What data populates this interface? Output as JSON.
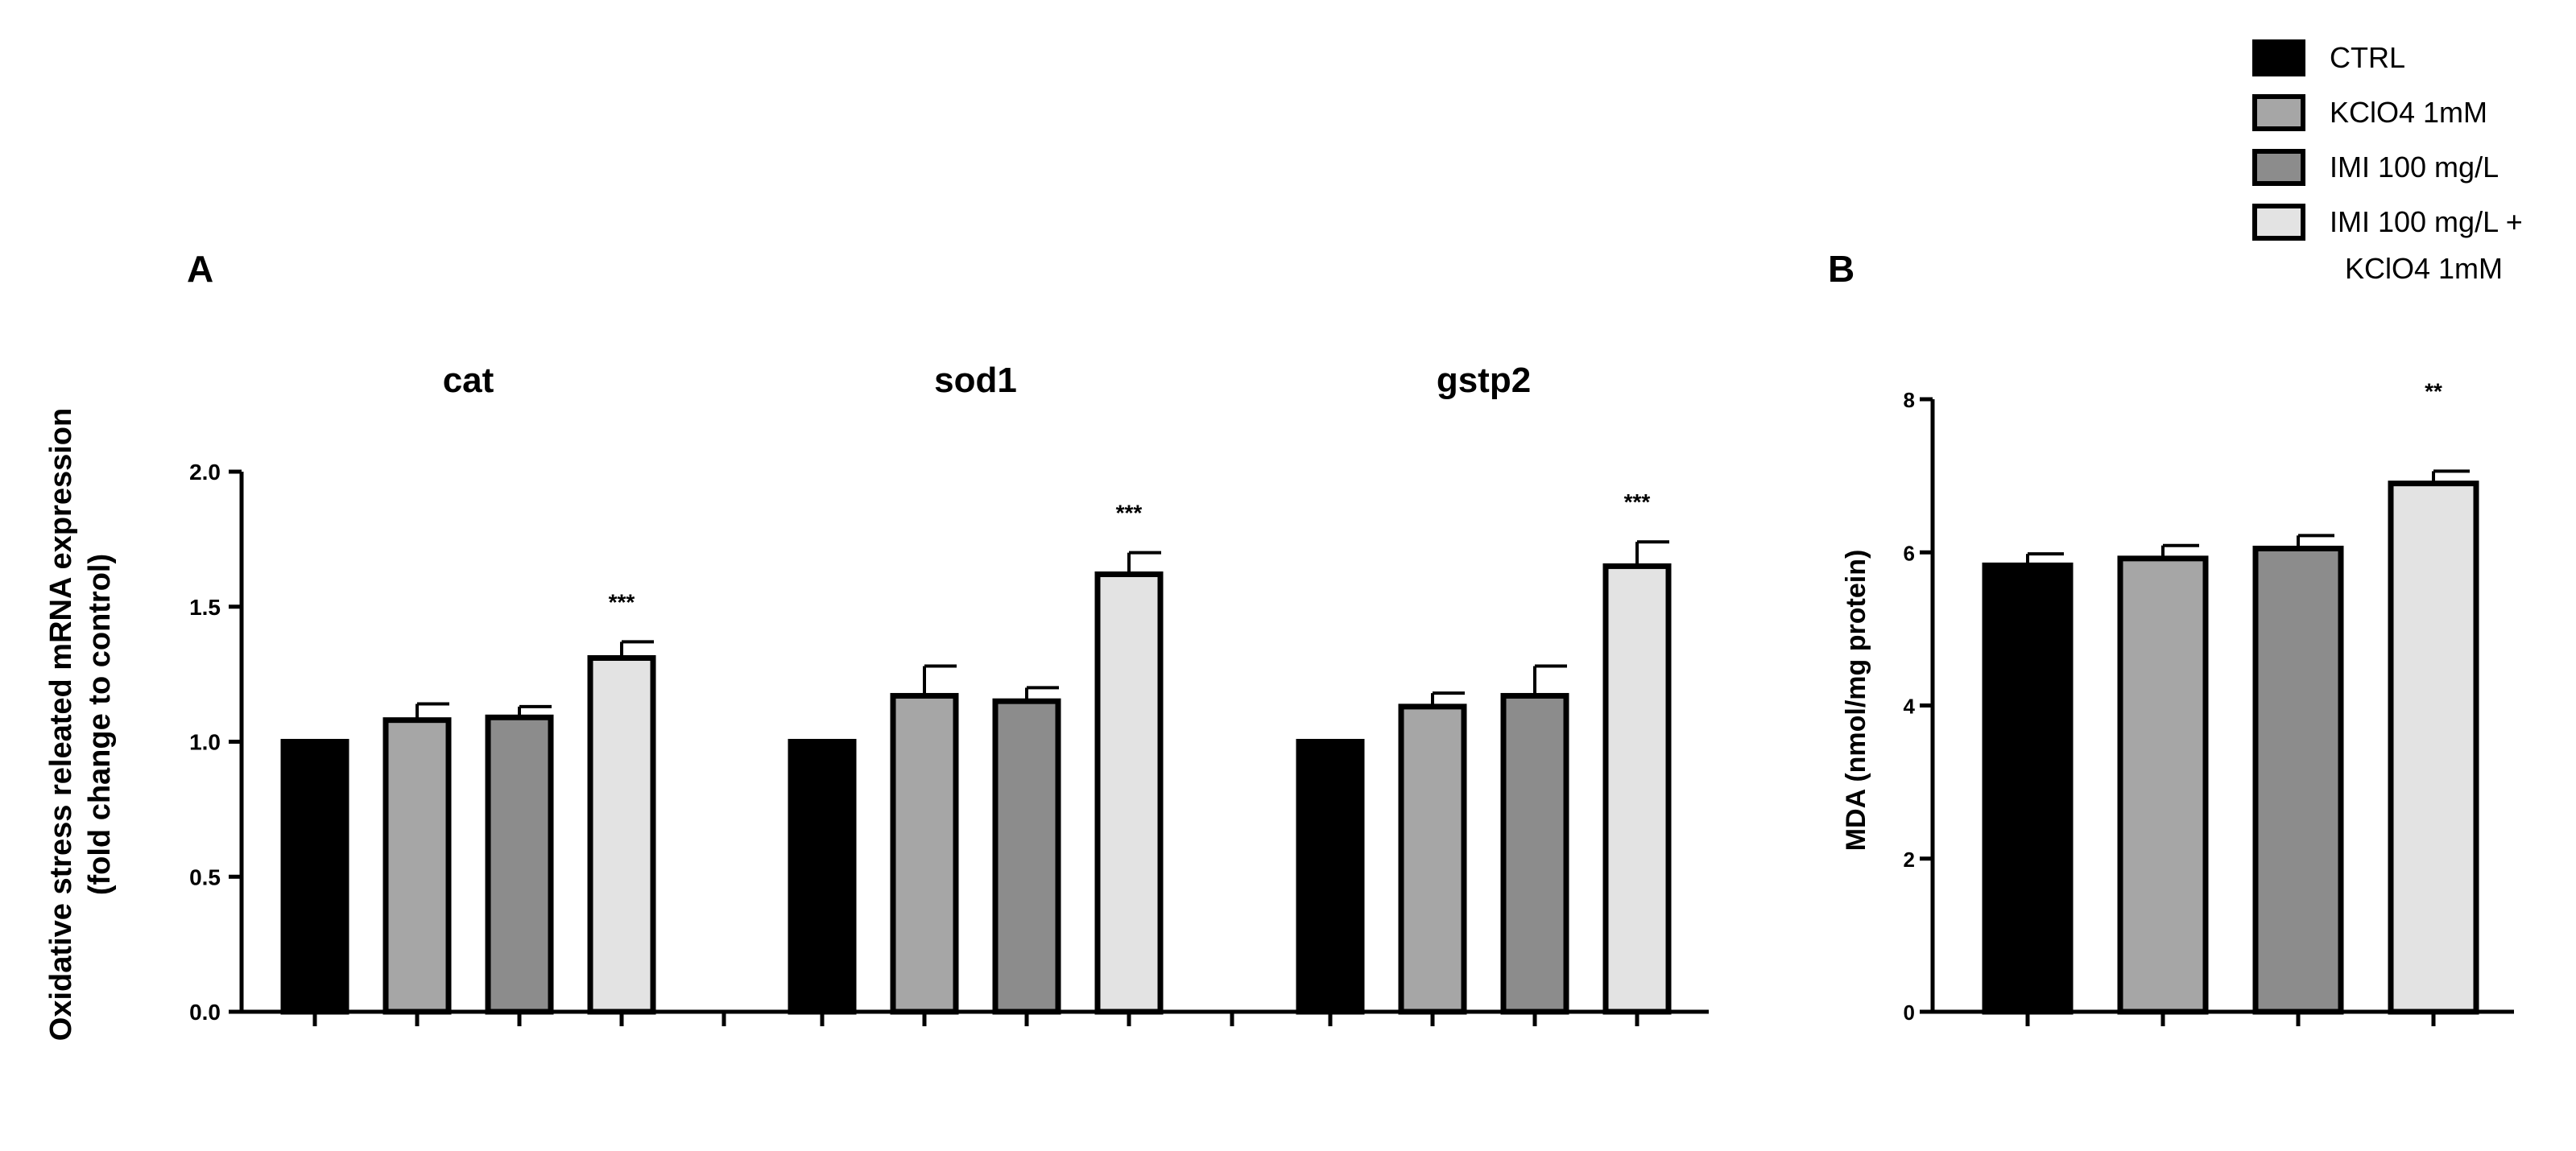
{
  "legend": {
    "items": [
      {
        "label": "CTRL",
        "color": "#000000"
      },
      {
        "label": "KClO4 1mM",
        "color": "#a6a6a6"
      },
      {
        "label": "IMI 100 mg/L",
        "color": "#8c8c8c"
      },
      {
        "label": "IMI 100 mg/L +",
        "label2": "KClO4 1mM",
        "color": "#e3e3e3"
      }
    ]
  },
  "chart_data": [
    {
      "panel": "A",
      "type": "bar",
      "ylabel": "Oxidative stress releated mRNA expression",
      "ylabel2": "(fold change to control)",
      "ylim": [
        0,
        2.0
      ],
      "yticks": [
        "0.0",
        "0.5",
        "1.0",
        "1.5",
        "2.0"
      ],
      "groups": [
        {
          "label": "cat",
          "values": [
            1.0,
            1.08,
            1.09,
            1.31
          ],
          "errors": [
            0,
            0.06,
            0.04,
            0.06
          ],
          "sig": [
            "",
            "",
            "",
            "***"
          ]
        },
        {
          "label": "sod1",
          "values": [
            1.0,
            1.17,
            1.15,
            1.62
          ],
          "errors": [
            0,
            0.11,
            0.05,
            0.08
          ],
          "sig": [
            "",
            "",
            "",
            "***"
          ]
        },
        {
          "label": "gstp2",
          "values": [
            1.0,
            1.13,
            1.17,
            1.65
          ],
          "errors": [
            0,
            0.05,
            0.11,
            0.09
          ],
          "sig": [
            "",
            "",
            "",
            "***"
          ]
        }
      ]
    },
    {
      "panel": "B",
      "type": "bar",
      "ylabel": "MDA (nmol/mg protein)",
      "ylim": [
        0,
        8
      ],
      "yticks": [
        "0",
        "2",
        "4",
        "6",
        "8"
      ],
      "values": [
        5.83,
        5.92,
        6.05,
        6.9
      ],
      "errors": [
        0.15,
        0.17,
        0.17,
        0.16
      ],
      "sig": [
        "",
        "",
        "",
        "**"
      ]
    }
  ]
}
